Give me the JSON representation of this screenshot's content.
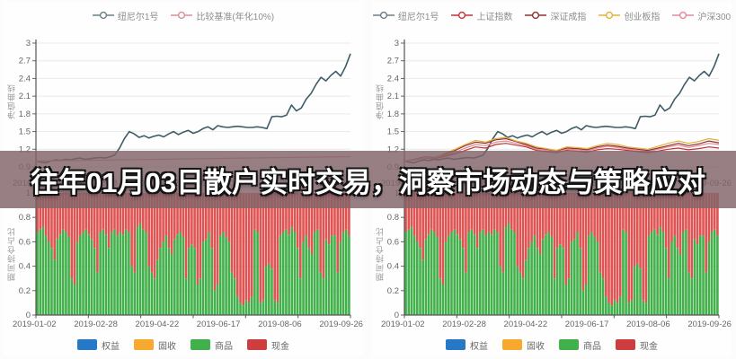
{
  "banner": {
    "text": "往年01月03日散户实时交易，洞察市场动态与策略应对",
    "overlay_color": "rgba(129,99,104,0.82)"
  },
  "axes": {
    "line_y_title": "净值曲线",
    "bar_y_title": "期间持仓占比",
    "x_dates": [
      "2019-01-02",
      "2019-02-28",
      "2019-04-22",
      "2019-06-17",
      "2019-08-06",
      "2019-09-26"
    ]
  },
  "panels": [
    {
      "top_legend": [
        {
          "label": "纽尼尔1号",
          "color": "#6c7f88"
        },
        {
          "label": "比较基准(年化10%)",
          "color": "#d98f98"
        }
      ]
    },
    {
      "top_legend": [
        {
          "label": "纽尼尔1号",
          "color": "#6c7f88"
        },
        {
          "label": "上证指数",
          "color": "#c23531"
        },
        {
          "label": "深证成指",
          "color": "#8e3030"
        },
        {
          "label": "创业板指",
          "color": "#e2b13c"
        },
        {
          "label": "沪深300",
          "color": "#e08a9a"
        }
      ]
    }
  ],
  "bottom_legend": [
    {
      "label": "权益",
      "color": "#2878c8"
    },
    {
      "label": "固收",
      "color": "#f6a92c"
    },
    {
      "label": "商品",
      "color": "#43b14b"
    },
    {
      "label": "现金",
      "color": "#cf3e3e"
    }
  ],
  "chart_data": [
    {
      "type": "line",
      "x_range": [
        "2019-01-02",
        "2019-09-26"
      ],
      "ylim": [
        0.9,
        3.0
      ],
      "yticks": [
        3,
        2.7,
        2.4,
        2.1,
        1.8,
        1.5,
        1.2,
        0.9
      ],
      "series": [
        {
          "name": "纽尼尔1号",
          "color": "#3f5d68",
          "width": 1.6,
          "values": [
            1.0,
            0.98,
            0.97,
            1.0,
            1.02,
            1.01,
            1.03,
            1.02,
            1.04,
            1.05,
            1.03,
            1.04,
            1.05,
            1.06,
            1.05,
            1.07,
            1.1,
            1.22,
            1.38,
            1.5,
            1.46,
            1.4,
            1.43,
            1.39,
            1.42,
            1.44,
            1.41,
            1.46,
            1.5,
            1.45,
            1.49,
            1.52,
            1.47,
            1.5,
            1.55,
            1.58,
            1.53,
            1.6,
            1.58,
            1.57,
            1.58,
            1.59,
            1.58,
            1.57,
            1.57,
            1.58,
            1.57,
            1.55,
            1.75,
            1.76,
            1.75,
            1.78,
            1.95,
            1.85,
            1.9,
            2.05,
            2.15,
            2.3,
            2.42,
            2.36,
            2.45,
            2.52,
            2.44,
            2.6,
            2.82
          ]
        },
        {
          "name": "比较基准(年化10%)",
          "color": "#d98f98",
          "width": 1.2,
          "values": [
            1.0,
            1.075
          ]
        }
      ]
    },
    {
      "type": "line",
      "x_range": [
        "2019-01-02",
        "2019-09-26"
      ],
      "ylim": [
        0.9,
        3.0
      ],
      "yticks": [
        3,
        2.7,
        2.4,
        2.1,
        1.8,
        1.5,
        1.2,
        0.9
      ],
      "series": [
        {
          "name": "纽尼尔1号",
          "color": "#3f5d68",
          "width": 1.6,
          "values": [
            1.0,
            0.98,
            0.97,
            1.0,
            1.02,
            1.01,
            1.03,
            1.02,
            1.04,
            1.05,
            1.03,
            1.04,
            1.05,
            1.06,
            1.05,
            1.07,
            1.1,
            1.22,
            1.38,
            1.5,
            1.46,
            1.4,
            1.43,
            1.39,
            1.42,
            1.44,
            1.41,
            1.46,
            1.5,
            1.45,
            1.49,
            1.52,
            1.47,
            1.5,
            1.55,
            1.58,
            1.53,
            1.6,
            1.58,
            1.57,
            1.58,
            1.59,
            1.58,
            1.57,
            1.57,
            1.58,
            1.57,
            1.55,
            1.75,
            1.76,
            1.75,
            1.78,
            1.95,
            1.85,
            1.9,
            2.05,
            2.15,
            2.3,
            2.42,
            2.36,
            2.45,
            2.52,
            2.44,
            2.6,
            2.82
          ]
        },
        {
          "name": "上证指数",
          "color": "#c23531",
          "width": 1.2,
          "values": [
            1.0,
            1.02,
            1.05,
            1.04,
            1.08,
            1.12,
            1.18,
            1.24,
            1.22,
            1.28,
            1.3,
            1.27,
            1.24,
            1.18,
            1.16,
            1.14,
            1.18,
            1.17,
            1.15,
            1.19,
            1.21,
            1.2,
            1.18,
            1.16,
            1.14,
            1.17,
            1.2,
            1.22,
            1.19,
            1.21,
            1.24,
            1.22
          ]
        },
        {
          "name": "深证成指",
          "color": "#8e3030",
          "width": 1.2,
          "values": [
            1.0,
            1.03,
            1.07,
            1.06,
            1.12,
            1.18,
            1.26,
            1.32,
            1.3,
            1.36,
            1.38,
            1.33,
            1.28,
            1.22,
            1.2,
            1.17,
            1.22,
            1.21,
            1.19,
            1.24,
            1.27,
            1.25,
            1.22,
            1.2,
            1.18,
            1.22,
            1.26,
            1.3,
            1.26,
            1.29,
            1.34,
            1.31
          ]
        },
        {
          "name": "创业板指",
          "color": "#e2b13c",
          "width": 1.2,
          "values": [
            1.0,
            1.02,
            1.06,
            1.05,
            1.13,
            1.2,
            1.28,
            1.35,
            1.32,
            1.38,
            1.4,
            1.34,
            1.3,
            1.24,
            1.21,
            1.18,
            1.24,
            1.23,
            1.21,
            1.26,
            1.3,
            1.28,
            1.24,
            1.22,
            1.2,
            1.25,
            1.3,
            1.34,
            1.3,
            1.33,
            1.38,
            1.35
          ]
        },
        {
          "name": "沪深300",
          "color": "#e08a9a",
          "width": 1.2,
          "values": [
            1.0,
            1.02,
            1.05,
            1.05,
            1.1,
            1.15,
            1.22,
            1.28,
            1.26,
            1.32,
            1.34,
            1.3,
            1.26,
            1.2,
            1.18,
            1.16,
            1.2,
            1.19,
            1.17,
            1.22,
            1.25,
            1.23,
            1.2,
            1.18,
            1.16,
            1.2,
            1.24,
            1.27,
            1.23,
            1.26,
            1.3,
            1.28
          ]
        }
      ]
    },
    {
      "type": "bar",
      "stacked": true,
      "x_range": [
        "2019-01-02",
        "2019-09-26"
      ],
      "ylim": [
        0,
        1
      ],
      "yticks": [
        1,
        0.8,
        0.6,
        0.4,
        0.2,
        0
      ],
      "segments": [
        {
          "name": "商品",
          "color": "#43b14b"
        },
        {
          "name": "现金",
          "color": "#e05353"
        }
      ],
      "bottom_fraction": [
        0.68,
        0.7,
        0.72,
        0.65,
        0.6,
        0.55,
        0.45,
        0.62,
        0.66,
        0.7,
        0.68,
        0.64,
        0.3,
        0.25,
        0.6,
        0.65,
        0.68,
        0.7,
        0.66,
        0.62,
        0.55,
        0.35,
        0.68,
        0.7,
        0.66,
        0.55,
        0.68,
        0.7,
        0.65,
        0.68,
        0.66,
        0.7,
        0.68,
        0.4,
        0.35,
        0.72,
        0.75,
        0.7,
        0.68,
        0.4,
        0.35,
        0.3,
        0.45,
        0.55,
        0.6,
        0.65,
        0.55,
        0.5,
        0.62,
        0.66,
        0.68,
        0.64,
        0.3,
        0.55,
        0.58,
        0.55,
        0.25,
        0.3,
        0.6,
        0.62,
        0.68,
        0.55,
        0.2,
        0.25,
        0.65,
        0.68,
        0.64,
        0.6,
        0.35,
        0.3,
        0.15,
        0.1,
        0.08,
        0.12,
        0.1,
        0.15,
        0.7,
        0.68,
        0.1,
        0.12,
        0.4,
        0.42,
        0.38,
        0.12,
        0.1,
        0.65,
        0.68,
        0.7,
        0.66,
        0.72,
        0.68,
        0.55,
        0.3,
        0.6,
        0.65,
        0.55,
        0.5,
        0.68,
        0.7,
        0.35,
        0.3,
        0.62,
        0.58,
        0.65,
        0.65,
        0.35,
        0.6,
        0.68,
        0.7,
        0.65
      ]
    }
  ]
}
